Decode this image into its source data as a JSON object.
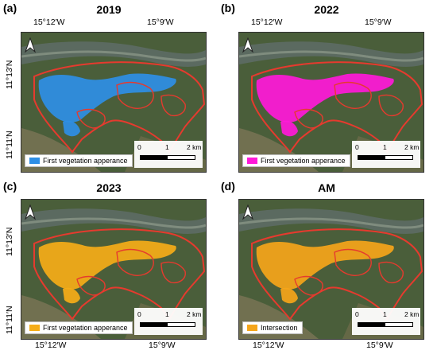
{
  "panels": [
    {
      "label": "(a)",
      "title": "2019",
      "legend": "First vegetation apperance",
      "color": "#2e8fe6"
    },
    {
      "label": "(b)",
      "title": "2022",
      "legend": "First vegetation apperance",
      "color": "#ff19d9"
    },
    {
      "label": "(c)",
      "title": "2023",
      "legend": "First vegetation apperance",
      "color": "#f5ad18"
    },
    {
      "label": "(d)",
      "title": "AM",
      "legend": "Intersection",
      "color": "#f5a51a"
    }
  ],
  "longitude_labels": [
    "15°12′W",
    "15°9′W"
  ],
  "latitude_labels": [
    "11°13′N",
    "11°11′N"
  ],
  "scale_bar": {
    "ticks": [
      "0",
      "1",
      "2 km"
    ]
  },
  "boundary_color": "#e63a2e",
  "north_arrow": "north-arrow-icon"
}
